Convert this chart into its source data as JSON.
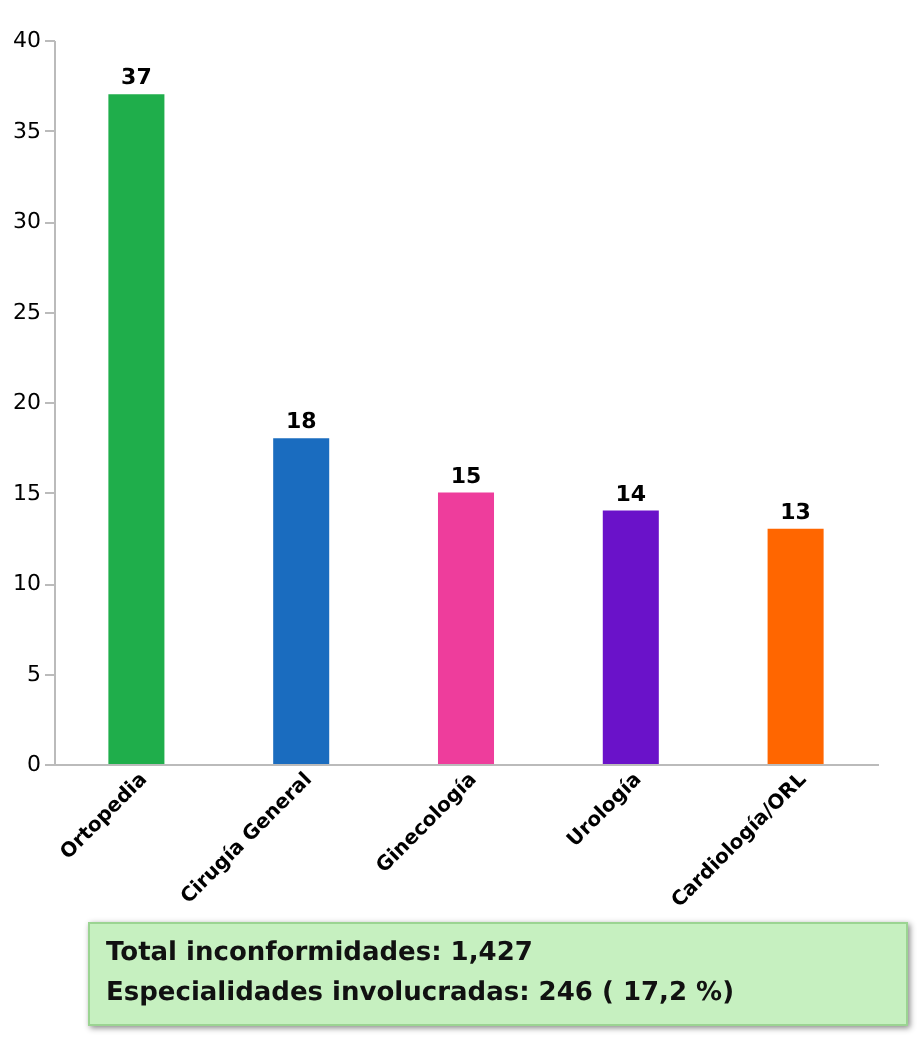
{
  "chart_data": {
    "type": "bar",
    "categories": [
      "Ortopedia",
      "Cirugía General",
      "Ginecología",
      "Urología",
      "Cardiología/ORL"
    ],
    "values": [
      37,
      18,
      15,
      14,
      13
    ],
    "colors": [
      "#1fae4b",
      "#1a6cbf",
      "#ee3d9c",
      "#6a12c9",
      "#ff6600"
    ],
    "ylim": [
      0,
      40
    ],
    "yticks": [
      0,
      5,
      10,
      15,
      20,
      25,
      30,
      35,
      40
    ],
    "data_labels": true,
    "grid": false,
    "legend": false,
    "annotations": [
      "Total inconformidades: 1,427",
      "Especialidades involucradas: 246 ( 17,2 %)"
    ]
  }
}
